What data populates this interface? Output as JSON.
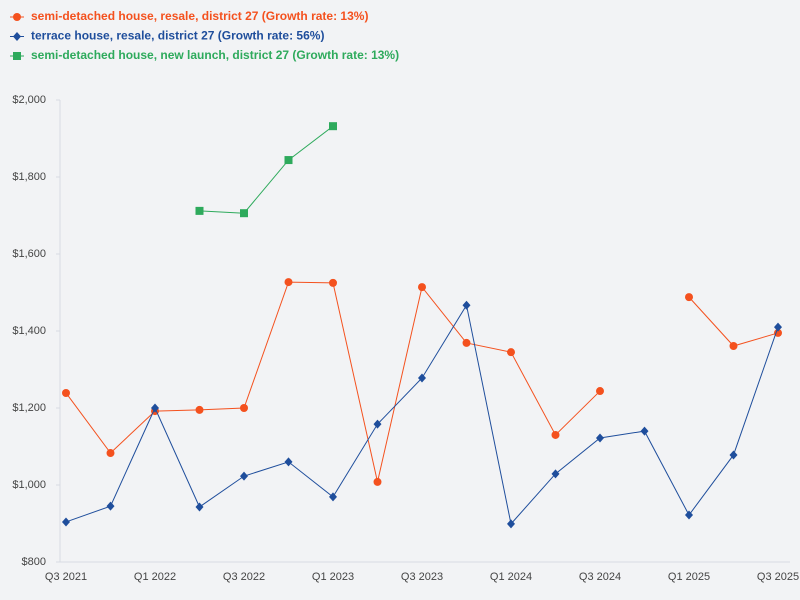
{
  "chart_data": {
    "type": "line",
    "categories": [
      "Q3 2021",
      null,
      "Q1 2022",
      null,
      "Q3 2022",
      null,
      "Q1 2023",
      null,
      "Q3 2023",
      null,
      "Q1 2024",
      null,
      "Q3 2024",
      null,
      "Q1 2025",
      null,
      "Q3 2025"
    ],
    "series": [
      {
        "name": "semi-detached house, resale, district 27 (Growth rate: 13%)",
        "color": "#f4511e",
        "marker": "circle",
        "values": [
          1239,
          1083,
          1192,
          1195,
          1200,
          1527,
          1525,
          1008,
          1514,
          1369,
          1345,
          1130,
          1244,
          null,
          1488,
          1361,
          1395
        ]
      },
      {
        "name": "terrace house, resale, district 27 (Growth rate: 56%)",
        "color": "#1f4e9c",
        "marker": "diamond",
        "values": [
          904,
          945,
          1200,
          943,
          1023,
          1060,
          969,
          1158,
          1278,
          1467,
          899,
          1029,
          1122,
          1140,
          922,
          1078,
          1410
        ]
      },
      {
        "name": "semi-detached house, new launch, district 27 (Growth rate: 13%)",
        "color": "#2eaa5c",
        "marker": "square",
        "values": [
          null,
          null,
          null,
          1712,
          1706,
          1844,
          1932,
          null,
          null,
          null,
          null,
          null,
          null,
          null,
          null,
          null,
          null
        ]
      }
    ],
    "ylim": [
      800,
      2000
    ],
    "yticks": [
      {
        "value": 800,
        "label": "$800"
      },
      {
        "value": 1000,
        "label": "$1,000"
      },
      {
        "value": 1200,
        "label": "$1,200"
      },
      {
        "value": 1400,
        "label": "$1,400"
      },
      {
        "value": 1600,
        "label": "$1,600"
      },
      {
        "value": 1800,
        "label": "$1,800"
      },
      {
        "value": 2000,
        "label": "$2,000"
      }
    ],
    "grid": false
  }
}
